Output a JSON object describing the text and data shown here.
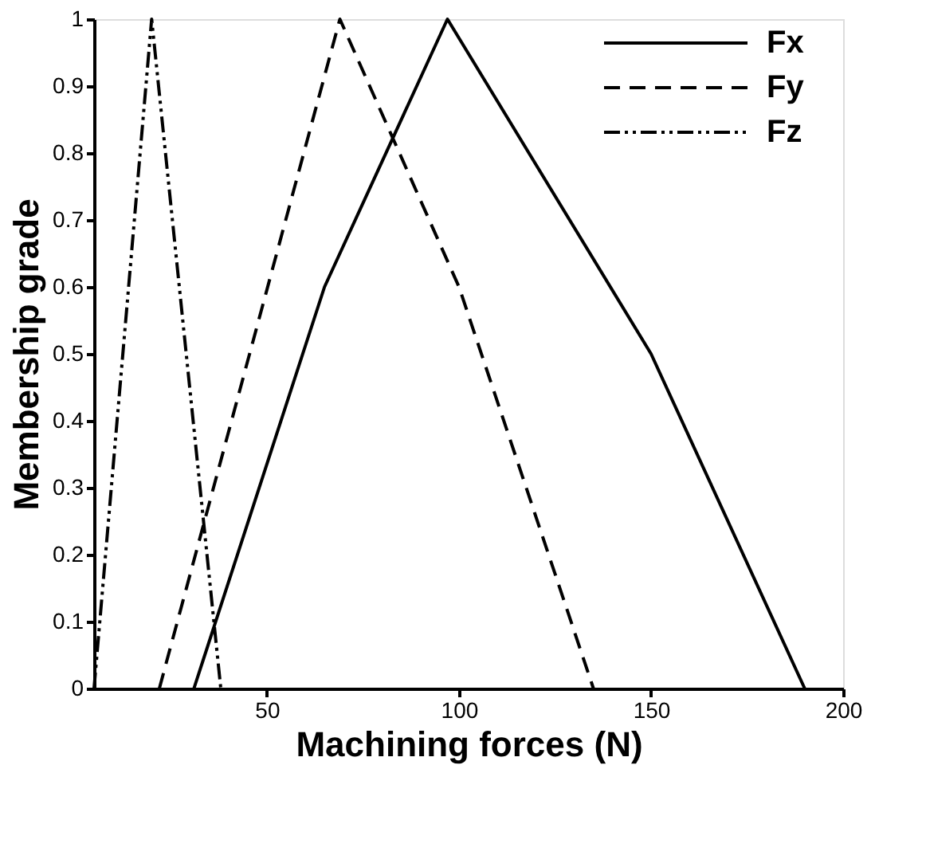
{
  "chart_data": {
    "type": "line",
    "xlabel": "Machining forces (N)",
    "ylabel": "Membership grade",
    "xlim": [
      5,
      200
    ],
    "xticks": [
      50,
      100,
      150,
      200
    ],
    "ylim": [
      0,
      1
    ],
    "yticks": [
      0,
      0.1,
      0.2,
      0.3,
      0.4,
      0.5,
      0.6,
      0.7,
      0.8,
      0.9,
      1
    ],
    "grid": false,
    "legend": "top right",
    "marker": "none",
    "series": [
      {
        "name": "Fx",
        "color": "#000000",
        "line_style": "solid",
        "x": [
          31,
          65,
          97,
          150,
          190
        ],
        "values": [
          0,
          0.6,
          1,
          0.5,
          0
        ]
      },
      {
        "name": "Fy",
        "color": "#000000",
        "line_style": "dashed",
        "x": [
          22,
          69,
          100,
          135
        ],
        "values": [
          0,
          1,
          0.6,
          0
        ]
      },
      {
        "name": "Fz",
        "color": "#000000",
        "line_style": "dashdotdot",
        "x": [
          5,
          20,
          38
        ],
        "values": [
          0,
          1,
          0
        ]
      }
    ]
  }
}
